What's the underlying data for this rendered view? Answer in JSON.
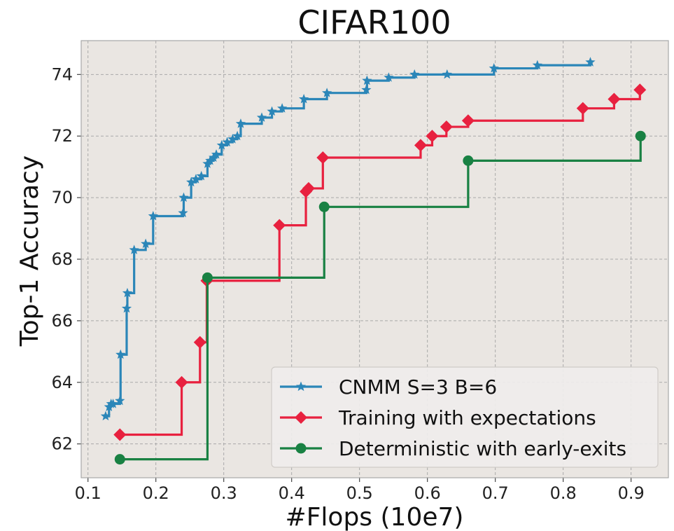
{
  "chart_data": {
    "type": "line",
    "title": "CIFAR100",
    "xlabel": "#Flops (10e7)",
    "ylabel": "Top-1 Accuracy",
    "xlim": [
      0.09,
      0.955
    ],
    "ylim": [
      60.9,
      75.1
    ],
    "xticks": [
      "0.1",
      "0.2",
      "0.3",
      "0.4",
      "0.5",
      "0.6",
      "0.7",
      "0.8",
      "0.9"
    ],
    "yticks": [
      "62",
      "64",
      "66",
      "68",
      "70",
      "72",
      "74"
    ],
    "grid": true,
    "legend_position": "lower-right",
    "step": "post",
    "series": [
      {
        "name": "CNMM S=3 B=6",
        "color": "#2b86b8",
        "marker": "star",
        "x": [
          0.126,
          0.131,
          0.134,
          0.137,
          0.147,
          0.148,
          0.157,
          0.158,
          0.168,
          0.185,
          0.196,
          0.24,
          0.241,
          0.252,
          0.259,
          0.267,
          0.276,
          0.28,
          0.285,
          0.289,
          0.297,
          0.305,
          0.313,
          0.32,
          0.325,
          0.356,
          0.371,
          0.386,
          0.418,
          0.452,
          0.51,
          0.511,
          0.543,
          0.581,
          0.629,
          0.698,
          0.762,
          0.84
        ],
        "y": [
          62.9,
          63.2,
          63.3,
          63.3,
          63.4,
          64.9,
          66.4,
          66.9,
          68.3,
          68.5,
          69.4,
          69.5,
          70.0,
          70.5,
          70.6,
          70.7,
          71.1,
          71.2,
          71.3,
          71.4,
          71.7,
          71.8,
          71.9,
          72.0,
          72.4,
          72.6,
          72.8,
          72.9,
          73.2,
          73.4,
          73.5,
          73.8,
          73.9,
          74.0,
          74.0,
          74.2,
          74.3,
          74.4
        ]
      },
      {
        "name": "Training with expectations",
        "color": "#e8213f",
        "marker": "diamond",
        "x": [
          0.147,
          0.238,
          0.265,
          0.275,
          0.382,
          0.421,
          0.425,
          0.446,
          0.59,
          0.607,
          0.628,
          0.66,
          0.829,
          0.875,
          0.913
        ],
        "y": [
          62.3,
          64.0,
          65.3,
          67.3,
          69.1,
          70.2,
          70.3,
          71.3,
          71.7,
          72.0,
          72.3,
          72.5,
          72.9,
          73.2,
          73.5
        ]
      },
      {
        "name": "Deterministic with early-exits",
        "color": "#198143",
        "marker": "circle",
        "x": [
          0.147,
          0.276,
          0.448,
          0.66,
          0.914
        ],
        "y": [
          61.5,
          67.4,
          69.7,
          71.2,
          72.0
        ]
      }
    ]
  }
}
